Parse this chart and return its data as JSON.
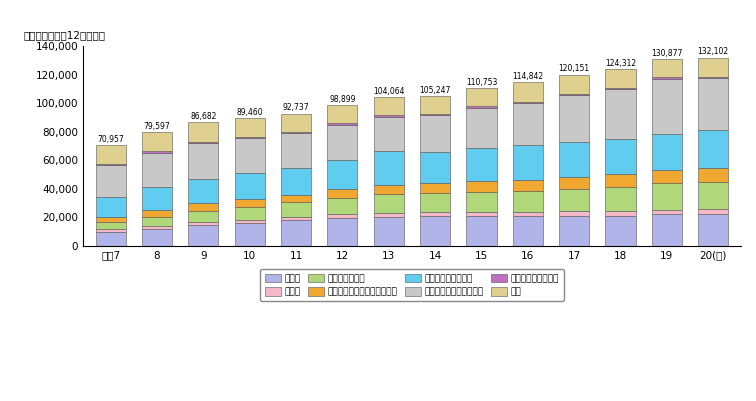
{
  "years": [
    "平成7",
    "8",
    "9",
    "10",
    "11",
    "12",
    "13",
    "14",
    "15",
    "16",
    "17",
    "18",
    "19",
    "20(年)"
  ],
  "totals": [
    70957,
    79597,
    86682,
    89460,
    92737,
    98899,
    104064,
    105247,
    110753,
    114842,
    120151,
    124312,
    130877,
    132102
  ],
  "categories": [
    "通信業",
    "放送業",
    "情報サービス業",
    "映像・音声・文字情報制作業",
    "情報通信関連製造業",
    "情報通信関連サービス業",
    "情報通信関連設備業",
    "研究"
  ],
  "colors": [
    "#b0b4e8",
    "#f5b8c8",
    "#b0d87a",
    "#f0a830",
    "#60ccf0",
    "#c8c8c8",
    "#c070c0",
    "#e0d090"
  ],
  "data": {
    "通信業": [
      10000,
      12000,
      14500,
      16000,
      18000,
      19500,
      20500,
      20800,
      21000,
      21000,
      21000,
      21000,
      22000,
      22500
    ],
    "放送業": [
      1500,
      1800,
      2200,
      2300,
      2400,
      2500,
      2700,
      2800,
      2900,
      3000,
      3100,
      3200,
      3300,
      3400
    ],
    "情報サービス業": [
      5000,
      6500,
      8000,
      9000,
      10000,
      11500,
      13000,
      13500,
      14000,
      14500,
      15500,
      17000,
      18500,
      18500
    ],
    "映像・音声・文字情報制作業": [
      4000,
      5000,
      5500,
      5500,
      5500,
      6000,
      6500,
      7000,
      7500,
      8000,
      8500,
      9500,
      9500,
      10000
    ],
    "情報通信関連製造業": [
      14000,
      16000,
      17000,
      18000,
      18500,
      20500,
      24000,
      22000,
      23000,
      24000,
      24500,
      24000,
      25000,
      27000
    ],
    "情報通信関連サービス業": [
      22000,
      24000,
      25000,
      24500,
      24500,
      25000,
      24000,
      25500,
      28500,
      29500,
      33000,
      35000,
      38500,
      36000
    ],
    "情報通信関連設備業": [
      1000,
      900,
      900,
      1000,
      1000,
      1000,
      1000,
      1000,
      1000,
      1000,
      1200,
      1300,
      1300,
      1300
    ],
    "研究": [
      13457,
      13397,
      13582,
      13160,
      12837,
      12899,
      12364,
      12647,
      12853,
      13842,
      13351,
      13312,
      12777,
      13402
    ]
  },
  "ylabel": "（十億円、平成12年価格）",
  "ylim": [
    0,
    140000
  ],
  "yticks": [
    0,
    20000,
    40000,
    60000,
    80000,
    100000,
    120000,
    140000
  ],
  "bar_width": 0.65,
  "figure_bg": "#ffffff",
  "plot_bg": "#ffffff"
}
